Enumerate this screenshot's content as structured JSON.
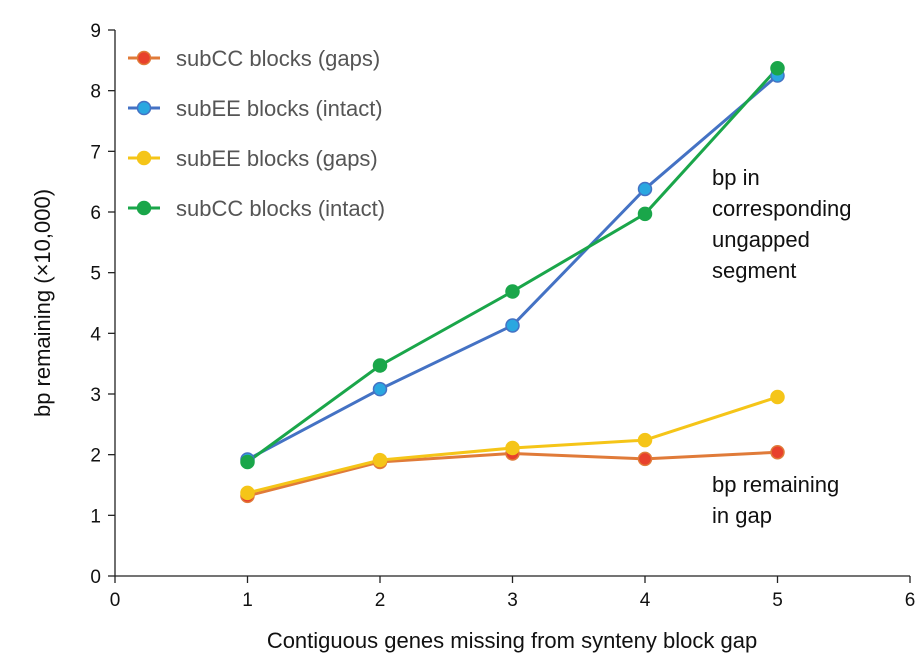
{
  "chart_data": {
    "type": "line",
    "x": [
      1,
      2,
      3,
      4,
      5
    ],
    "xlim": [
      0,
      6
    ],
    "ylim": [
      0,
      9
    ],
    "xticks": [
      "0",
      "1",
      "2",
      "3",
      "4",
      "5",
      "6"
    ],
    "yticks": [
      "0",
      "1",
      "2",
      "3",
      "4",
      "5",
      "6",
      "7",
      "8",
      "9"
    ],
    "xlabel": "Contiguous genes missing from synteny block gap",
    "ylabel": "bp remaining (×10,000)",
    "grid": false,
    "legend_position": "top-left",
    "series": [
      {
        "name": "subCC blocks (gaps)",
        "line_color": "#e07b39",
        "marker_color": "#e8412c",
        "values": [
          1.32,
          1.88,
          2.02,
          1.93,
          2.04
        ]
      },
      {
        "name": "subEE blocks (intact)",
        "line_color": "#4472c4",
        "marker_color": "#2aa7e0",
        "values": [
          1.92,
          3.08,
          4.13,
          6.38,
          8.25
        ]
      },
      {
        "name": "subEE blocks (gaps)",
        "line_color": "#f5c518",
        "marker_color": "#f5c518",
        "values": [
          1.37,
          1.91,
          2.11,
          2.24,
          2.95
        ]
      },
      {
        "name": "subCC blocks (intact)",
        "line_color": "#1aa64a",
        "marker_color": "#1aa64a",
        "values": [
          1.88,
          3.47,
          4.69,
          5.97,
          8.37
        ]
      }
    ],
    "annotations": [
      {
        "lines": [
          "bp in",
          "corresponding",
          "ungapped",
          "segment"
        ]
      },
      {
        "lines": [
          "bp remaining",
          "in gap"
        ]
      }
    ]
  }
}
